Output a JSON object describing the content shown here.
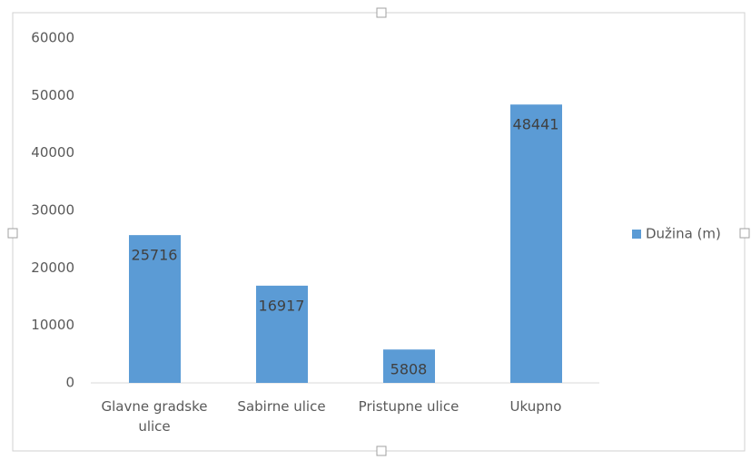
{
  "chart_data": {
    "type": "bar",
    "categories": [
      "Glavne gradske ulice",
      "Sabirne ulice",
      "Pristupne ulice",
      "Ukupno"
    ],
    "series": [
      {
        "name": "Dužina (m)",
        "color": "#5b9bd5",
        "values": [
          25716,
          16917,
          5808,
          48441
        ]
      }
    ],
    "ylim": [
      0,
      60000
    ],
    "yticks": [
      0,
      10000,
      20000,
      30000,
      40000,
      50000,
      60000
    ],
    "grid": false,
    "legend": "right",
    "data_labels": true
  }
}
